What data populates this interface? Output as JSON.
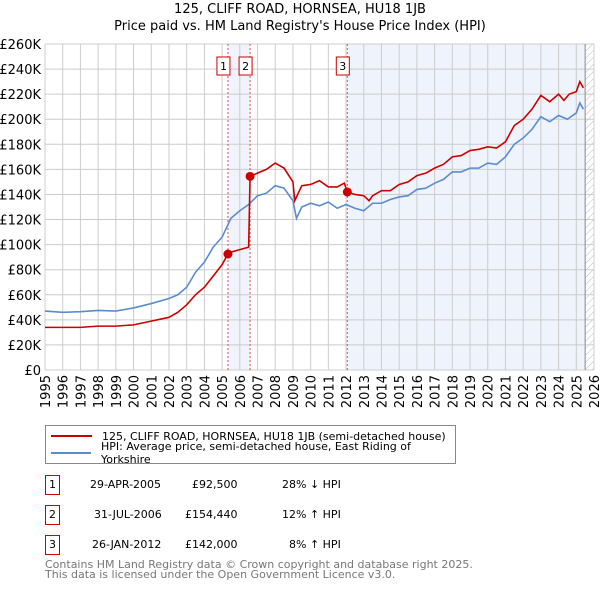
{
  "chart_data": {
    "type": "line",
    "title": "125, CLIFF ROAD, HORNSEA, HU18 1JB",
    "subtitle": "Price paid vs. HM Land Registry's House Price Index (HPI)",
    "xlim": [
      1995,
      2026
    ],
    "ylim": [
      0,
      260000
    ],
    "y_ticks": [
      "£0",
      "£20K",
      "£40K",
      "£60K",
      "£80K",
      "£100K",
      "£120K",
      "£140K",
      "£160K",
      "£180K",
      "£200K",
      "£220K",
      "£240K",
      "£260K"
    ],
    "x_ticks": [
      "1995",
      "1996",
      "1997",
      "1998",
      "1999",
      "2000",
      "2001",
      "2002",
      "2003",
      "2004",
      "2005",
      "2006",
      "2007",
      "2008",
      "2009",
      "2010",
      "2011",
      "2012",
      "2013",
      "2014",
      "2015",
      "2016",
      "2017",
      "2018",
      "2019",
      "2020",
      "2021",
      "2022",
      "2023",
      "2024",
      "2025",
      "2026"
    ],
    "grid": true,
    "series": [
      {
        "name": "125, CLIFF ROAD, HORNSEA, HU18 1JB (semi-detached house)",
        "color": "#cc0000",
        "x": [
          1995,
          1997,
          1998,
          1999,
          2000,
          2001,
          2002,
          2002.5,
          2003,
          2003.5,
          2004,
          2004.5,
          2005,
          2005.33,
          2005.5,
          2006,
          2006.5,
          2006.58,
          2007,
          2007.5,
          2008,
          2008.5,
          2009,
          2009.1,
          2009.5,
          2010,
          2010.5,
          2011,
          2011.5,
          2011.9,
          2012.07,
          2012.5,
          2013,
          2013.3,
          2013.5,
          2014,
          2014.5,
          2015,
          2015.5,
          2016,
          2016.5,
          2017,
          2017.5,
          2018,
          2018.5,
          2019,
          2019.5,
          2020,
          2020.5,
          2021,
          2021.5,
          2022,
          2022.5,
          2023,
          2023.5,
          2024,
          2024.3,
          2024.6,
          2025,
          2025.2,
          2025.4
        ],
        "y": [
          34,
          34,
          35,
          35,
          36,
          39,
          42,
          46,
          52,
          60,
          66,
          75,
          84,
          92.5,
          94,
          96,
          98,
          154.4,
          157,
          160,
          165,
          161,
          150,
          135,
          147,
          148,
          151,
          146,
          146,
          149,
          142,
          140,
          139,
          135,
          139,
          143,
          143,
          148,
          150,
          155,
          157,
          161,
          164,
          170,
          171,
          175,
          176,
          178,
          177,
          182,
          195,
          200,
          208,
          219,
          214,
          220,
          215,
          220,
          222,
          230,
          225
        ]
      },
      {
        "name": "HPI: Average price, semi-detached house, East Riding of Yorkshire",
        "color": "#5b8ccf",
        "x": [
          1995,
          1996,
          1997,
          1998,
          1999,
          2000,
          2001,
          2002,
          2002.5,
          2003,
          2003.5,
          2004,
          2004.5,
          2005,
          2005.5,
          2006,
          2006.5,
          2007,
          2007.5,
          2008,
          2008.5,
          2009,
          2009.2,
          2009.5,
          2010,
          2010.5,
          2011,
          2011.5,
          2012,
          2012.5,
          2013,
          2013.5,
          2014,
          2014.5,
          2015,
          2015.5,
          2016,
          2016.5,
          2017,
          2017.5,
          2018,
          2018.5,
          2019,
          2019.5,
          2020,
          2020.5,
          2021,
          2021.5,
          2022,
          2022.5,
          2023,
          2023.5,
          2024,
          2024.5,
          2025,
          2025.2,
          2025.4
        ],
        "y": [
          47,
          46,
          46.5,
          47.5,
          47,
          49.5,
          53,
          57,
          60,
          66,
          78,
          86,
          98,
          106,
          121,
          127,
          132,
          139,
          141,
          147,
          145,
          135,
          121,
          130,
          133,
          131,
          134,
          129,
          132,
          129,
          127,
          133,
          133,
          136,
          138,
          139,
          144,
          145,
          149,
          152,
          158,
          158,
          161,
          161,
          165,
          164,
          170,
          180,
          185,
          192,
          202,
          198,
          203,
          200,
          205,
          213,
          208
        ]
      }
    ],
    "y_units": "thousands GBP",
    "sales": [
      {
        "label": "1",
        "x": 2005.33,
        "date": "29-APR-2005",
        "price": "£92,500",
        "value": 92.5,
        "hpi": "28% ↓ HPI"
      },
      {
        "label": "2",
        "x": 2006.58,
        "date": "31-JUL-2006",
        "price": "£154,440",
        "value": 154.44,
        "hpi": "12% ↑ HPI"
      },
      {
        "label": "3",
        "x": 2012.07,
        "date": "26-JAN-2012",
        "price": "£142,000",
        "value": 142,
        "hpi": "8% ↑ HPI"
      }
    ],
    "forecast_start": 2025.5
  },
  "footer": {
    "line1": "Contains HM Land Registry data © Crown copyright and database right 2025.",
    "line2": "This data is licensed under the Open Government Licence v3.0."
  }
}
